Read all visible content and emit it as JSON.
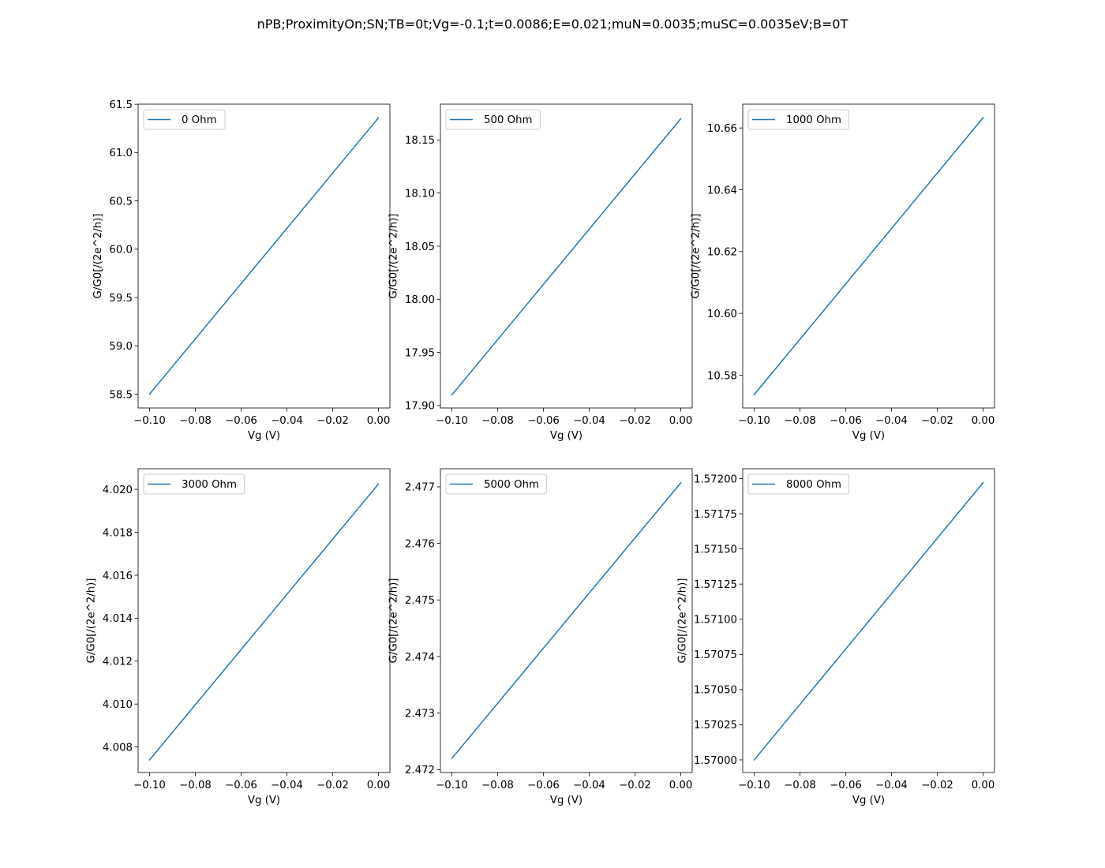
{
  "figure": {
    "suptitle": "nPB;ProximityOn;SN;TB=0t;Vg=-0.1;t=0.0086;E=0.021;muN=0.0035;muSC=0.0035eV;B=0T",
    "line_color": "#1f77b4"
  },
  "chart_data": [
    {
      "type": "line",
      "xlabel": "Vg (V)",
      "ylabel": "G/G0[/(2e^2/h)]",
      "legend_loc": "upper-left",
      "grid": false,
      "xlim": [
        -0.105,
        0.005
      ],
      "xticks": [
        -0.1,
        -0.08,
        -0.06,
        -0.04,
        -0.02,
        0.0
      ],
      "xtick_labels": [
        "−0.10",
        "−0.08",
        "−0.06",
        "−0.04",
        "−0.02",
        "0.00"
      ],
      "ylim": [
        58.357,
        61.501
      ],
      "yticks": [
        58.5,
        59.0,
        59.5,
        60.0,
        60.5,
        61.0,
        61.5
      ],
      "ytick_labels": [
        "58.5",
        "59.0",
        "59.5",
        "60.0",
        "60.5",
        "61.0",
        "61.5"
      ],
      "series": [
        {
          "name": "0 Ohm",
          "x": [
            -0.1,
            0.0
          ],
          "y": [
            58.5,
            61.36
          ]
        }
      ]
    },
    {
      "type": "line",
      "xlabel": "Vg (V)",
      "ylabel": "G/G0[/(2e^2/h)]",
      "legend_loc": "upper-left",
      "grid": false,
      "xlim": [
        -0.105,
        0.005
      ],
      "xticks": [
        -0.1,
        -0.08,
        -0.06,
        -0.04,
        -0.02,
        0.0
      ],
      "xtick_labels": [
        "−0.10",
        "−0.08",
        "−0.06",
        "−0.04",
        "−0.02",
        "0.00"
      ],
      "ylim": [
        17.8977,
        18.1837
      ],
      "yticks": [
        17.9,
        17.95,
        18.0,
        18.05,
        18.1,
        18.15
      ],
      "ytick_labels": [
        "17.90",
        "17.95",
        "18.00",
        "18.05",
        "18.10",
        "18.15"
      ],
      "series": [
        {
          "name": "500 Ohm",
          "x": [
            -0.1,
            0.0
          ],
          "y": [
            17.91,
            18.17
          ]
        }
      ]
    },
    {
      "type": "line",
      "xlabel": "Vg (V)",
      "ylabel": "G/G0[/(2e^2/h)]",
      "legend_loc": "upper-left",
      "grid": false,
      "xlim": [
        -0.105,
        0.005
      ],
      "xticks": [
        -0.1,
        -0.08,
        -0.06,
        -0.04,
        -0.02,
        0.0
      ],
      "xtick_labels": [
        "−0.10",
        "−0.08",
        "−0.06",
        "−0.04",
        "−0.02",
        "0.00"
      ],
      "ylim": [
        10.5694,
        10.6677
      ],
      "yticks": [
        10.58,
        10.6,
        10.62,
        10.64,
        10.66
      ],
      "ytick_labels": [
        "10.58",
        "10.60",
        "10.62",
        "10.64",
        "10.66"
      ],
      "series": [
        {
          "name": "1000 Ohm",
          "x": [
            -0.1,
            0.0
          ],
          "y": [
            10.5737,
            10.6633
          ]
        }
      ]
    },
    {
      "type": "line",
      "xlabel": "Vg (V)",
      "ylabel": "G/G0[/(2e^2/h)]",
      "legend_loc": "upper-left",
      "grid": false,
      "xlim": [
        -0.105,
        0.005
      ],
      "xticks": [
        -0.1,
        -0.08,
        -0.06,
        -0.04,
        -0.02,
        0.0
      ],
      "xtick_labels": [
        "−0.10",
        "−0.08",
        "−0.06",
        "−0.04",
        "−0.02",
        "0.00"
      ],
      "ylim": [
        4.00681,
        4.02096
      ],
      "yticks": [
        4.008,
        4.01,
        4.012,
        4.014,
        4.016,
        4.018,
        4.02
      ],
      "ytick_labels": [
        "4.008",
        "4.010",
        "4.012",
        "4.014",
        "4.016",
        "4.018",
        "4.020"
      ],
      "series": [
        {
          "name": "3000 Ohm",
          "x": [
            -0.1,
            0.0
          ],
          "y": [
            4.0074,
            4.02025
          ]
        }
      ]
    },
    {
      "type": "line",
      "xlabel": "Vg (V)",
      "ylabel": "G/G0[/(2e^2/h)]",
      "legend_loc": "upper-left",
      "grid": false,
      "xlim": [
        -0.105,
        0.005
      ],
      "xticks": [
        -0.1,
        -0.08,
        -0.06,
        -0.04,
        -0.02,
        0.0
      ],
      "xtick_labels": [
        "−0.10",
        "−0.08",
        "−0.06",
        "−0.04",
        "−0.02",
        "0.00"
      ],
      "ylim": [
        2.47195,
        2.47732
      ],
      "yticks": [
        2.472,
        2.473,
        2.474,
        2.475,
        2.476,
        2.477
      ],
      "ytick_labels": [
        "2.472",
        "2.473",
        "2.474",
        "2.475",
        "2.476",
        "2.477"
      ],
      "series": [
        {
          "name": "5000 Ohm",
          "x": [
            -0.1,
            0.0
          ],
          "y": [
            2.4722,
            2.47707
          ]
        }
      ]
    },
    {
      "type": "line",
      "xlabel": "Vg (V)",
      "ylabel": "G/G0[/(2e^2/h)]",
      "legend_loc": "upper-left",
      "grid": false,
      "xlim": [
        -0.105,
        0.005
      ],
      "xticks": [
        -0.1,
        -0.08,
        -0.06,
        -0.04,
        -0.02,
        0.0
      ],
      "xtick_labels": [
        "−0.10",
        "−0.08",
        "−0.06",
        "−0.04",
        "−0.02",
        "0.00"
      ],
      "ylim": [
        1.56991,
        1.57207
      ],
      "yticks": [
        1.57,
        1.57025,
        1.5705,
        1.57075,
        1.571,
        1.57125,
        1.5715,
        1.57175,
        1.572
      ],
      "ytick_labels": [
        "1.57000",
        "1.57025",
        "1.57050",
        "1.57075",
        "1.57100",
        "1.57125",
        "1.57150",
        "1.57175",
        "1.57200"
      ],
      "series": [
        {
          "name": "8000 Ohm",
          "x": [
            -0.1,
            0.0
          ],
          "y": [
            1.57,
            1.57197
          ]
        }
      ]
    }
  ]
}
